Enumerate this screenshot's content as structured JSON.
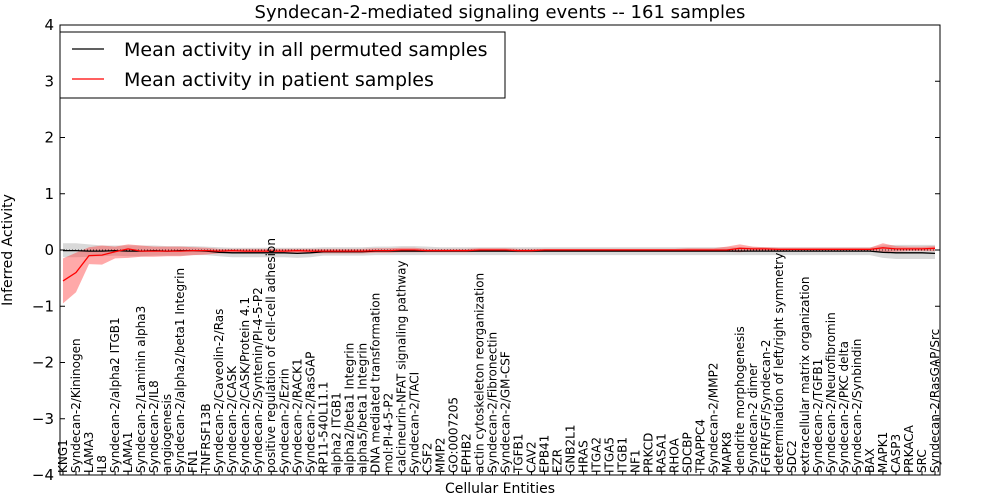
{
  "chart_data": {
    "type": "line",
    "title": "Syndecan-2-mediated signaling events -- 161 samples",
    "xlabel": "Cellular Entities",
    "ylabel": "Inferred Activity",
    "ylim": [
      -4,
      4
    ],
    "yticks": [
      "−4",
      "−3",
      "−2",
      "−1",
      "0",
      "1",
      "2",
      "3",
      "4"
    ],
    "legend_position": "upper-left",
    "categories": [
      "KNG1",
      "Syndecan-2/Kininogen",
      "LAMA3",
      "IL8",
      "Syndecan-2/alpha2 ITGB1",
      "LAMA1",
      "Syndecan-2/Laminin alpha3",
      "Syndecan-2/IL8",
      "angiogenesis",
      "Syndecan-2/alpha2/beta1 Integrin",
      "FN1",
      "TNFRSF13B",
      "Syndecan-2/Caveolin-2/Ras",
      "Syndecan-2/CASK",
      "Syndecan-2/CASK/Protein 4.1",
      "Syndecan-2/Syntenin/PI-4-5-P2",
      "positive regulation of cell-cell adhesion",
      "Syndecan-2/Ezrin",
      "Syndecan-2/RACK1",
      "Syndecan-2/RasGAP",
      "RP11-540L11.1",
      "alpha2 ITGB1",
      "alpha2/beta1 Integrin",
      "alpha5/beta1 Integrin",
      "DNA mediated transformation",
      "mol:PI-4-5-P2",
      "calcineurin-NFAT signaling pathway",
      "Syndecan-2/TACI",
      "CSF2",
      "MMP2",
      "GO:0007205",
      "EPHB2",
      "actin cytoskeleton reorganization",
      "Syndecan-2/Fibronectin",
      "Syndecan-2/GM-CSF",
      "TGFB1",
      "CAV2",
      "EPB41",
      "EZR",
      "GNB2L1",
      "HRAS",
      "ITGA2",
      "ITGA5",
      "ITGB1",
      "NF1",
      "PRKCD",
      "RASA1",
      "RHOA",
      "SDCBP",
      "TRAPPC4",
      "Syndecan-2/MMP2",
      "MAPK8",
      "dendrite morphogenesis",
      "Syndecan-2 dimer",
      "FGFR/FGF/Syndecan-2",
      "determination of left/right symmetry",
      "SDC2",
      "extracellular matrix organization",
      "Syndecan-2/TGFB1",
      "Syndecan-2/Neurofibromin",
      "Syndecan-2/PKC delta",
      "Syndecan-2/Synbindin",
      "BAX",
      "MAPK1",
      "CASP3",
      "PRKACA",
      "SRC",
      "Syndecan-2/RasGAP/Src"
    ],
    "series": [
      {
        "name": "Mean activity in all permuted samples",
        "color": "#000000",
        "values": [
          -0.01,
          -0.01,
          -0.02,
          -0.02,
          -0.01,
          -0.02,
          -0.02,
          -0.01,
          -0.02,
          -0.01,
          -0.01,
          -0.02,
          -0.04,
          -0.05,
          -0.05,
          -0.05,
          -0.05,
          -0.05,
          -0.06,
          -0.05,
          -0.03,
          -0.03,
          -0.03,
          -0.03,
          -0.02,
          -0.02,
          -0.02,
          -0.02,
          -0.02,
          -0.02,
          -0.02,
          -0.02,
          -0.02,
          -0.02,
          -0.02,
          -0.02,
          -0.02,
          -0.02,
          -0.02,
          -0.02,
          -0.02,
          -0.02,
          -0.02,
          -0.02,
          -0.02,
          -0.02,
          -0.02,
          -0.02,
          -0.02,
          -0.02,
          -0.02,
          -0.02,
          -0.02,
          -0.02,
          -0.02,
          -0.02,
          -0.02,
          -0.02,
          -0.02,
          -0.02,
          -0.02,
          -0.02,
          -0.02,
          -0.04,
          -0.05,
          -0.05,
          -0.05,
          -0.06
        ],
        "band_upper": [
          0.12,
          0.12,
          0.1,
          0.08,
          0.08,
          0.08,
          0.08,
          0.08,
          0.07,
          0.07,
          0.07,
          0.06,
          0.05,
          0.04,
          0.04,
          0.04,
          0.04,
          0.04,
          0.04,
          0.04,
          0.05,
          0.05,
          0.05,
          0.05,
          0.06,
          0.06,
          0.07,
          0.07,
          0.06,
          0.05,
          0.05,
          0.05,
          0.05,
          0.05,
          0.05,
          0.05,
          0.05,
          0.05,
          0.05,
          0.05,
          0.05,
          0.05,
          0.05,
          0.05,
          0.05,
          0.05,
          0.05,
          0.05,
          0.05,
          0.05,
          0.05,
          0.05,
          0.05,
          0.05,
          0.05,
          0.05,
          0.05,
          0.05,
          0.05,
          0.05,
          0.05,
          0.05,
          0.05,
          0.08,
          0.09,
          0.09,
          0.09,
          0.09
        ],
        "band_lower": [
          -0.13,
          -0.13,
          -0.12,
          -0.11,
          -0.1,
          -0.11,
          -0.11,
          -0.1,
          -0.1,
          -0.1,
          -0.09,
          -0.09,
          -0.11,
          -0.13,
          -0.13,
          -0.13,
          -0.13,
          -0.13,
          -0.14,
          -0.13,
          -0.1,
          -0.1,
          -0.1,
          -0.1,
          -0.09,
          -0.09,
          -0.09,
          -0.09,
          -0.09,
          -0.09,
          -0.09,
          -0.09,
          -0.09,
          -0.09,
          -0.09,
          -0.09,
          -0.09,
          -0.09,
          -0.09,
          -0.09,
          -0.09,
          -0.09,
          -0.09,
          -0.09,
          -0.09,
          -0.09,
          -0.09,
          -0.09,
          -0.09,
          -0.09,
          -0.09,
          -0.09,
          -0.09,
          -0.09,
          -0.09,
          -0.09,
          -0.09,
          -0.09,
          -0.09,
          -0.09,
          -0.09,
          -0.09,
          -0.09,
          -0.14,
          -0.16,
          -0.16,
          -0.16,
          -0.16
        ]
      },
      {
        "name": "Mean activity in patient samples",
        "color": "#ff0000",
        "values": [
          -0.55,
          -0.4,
          -0.1,
          -0.09,
          -0.03,
          0.02,
          -0.02,
          -0.02,
          -0.02,
          -0.02,
          -0.01,
          -0.01,
          -0.02,
          -0.01,
          -0.02,
          -0.02,
          -0.02,
          -0.02,
          -0.01,
          -0.02,
          -0.02,
          -0.02,
          -0.02,
          -0.02,
          -0.01,
          -0.01,
          0.0,
          0.0,
          -0.01,
          -0.01,
          -0.01,
          -0.01,
          0.0,
          0.0,
          0.0,
          -0.01,
          -0.01,
          0.0,
          0.0,
          0.0,
          0.0,
          0.0,
          0.0,
          0.0,
          0.0,
          0.0,
          0.0,
          0.0,
          0.0,
          0.0,
          0.0,
          0.0,
          0.03,
          0.02,
          0.02,
          0.01,
          0.01,
          0.01,
          0.01,
          0.01,
          0.01,
          0.01,
          0.01,
          0.04,
          0.02,
          0.02,
          0.02,
          0.03
        ],
        "band_upper": [
          -0.15,
          -0.05,
          0.05,
          0.08,
          0.06,
          0.1,
          0.08,
          0.06,
          0.06,
          0.06,
          0.05,
          0.04,
          0.02,
          0.02,
          0.02,
          0.02,
          0.02,
          0.02,
          0.02,
          0.02,
          0.02,
          0.02,
          0.02,
          0.02,
          0.03,
          0.03,
          0.04,
          0.04,
          0.02,
          0.02,
          0.02,
          0.02,
          0.03,
          0.03,
          0.03,
          0.02,
          0.02,
          0.02,
          0.02,
          0.02,
          0.02,
          0.02,
          0.02,
          0.02,
          0.02,
          0.02,
          0.02,
          0.02,
          0.03,
          0.03,
          0.03,
          0.06,
          0.1,
          0.06,
          0.05,
          0.04,
          0.04,
          0.04,
          0.04,
          0.04,
          0.04,
          0.04,
          0.04,
          0.12,
          0.07,
          0.06,
          0.06,
          0.07
        ],
        "band_lower": [
          -0.95,
          -0.75,
          -0.25,
          -0.26,
          -0.15,
          -0.14,
          -0.12,
          -0.12,
          -0.11,
          -0.11,
          -0.09,
          -0.08,
          -0.06,
          -0.05,
          -0.06,
          -0.06,
          -0.06,
          -0.06,
          -0.05,
          -0.06,
          -0.06,
          -0.06,
          -0.06,
          -0.06,
          -0.05,
          -0.05,
          -0.04,
          -0.04,
          -0.04,
          -0.04,
          -0.04,
          -0.04,
          -0.03,
          -0.03,
          -0.03,
          -0.04,
          -0.04,
          -0.03,
          -0.03,
          -0.03,
          -0.03,
          -0.03,
          -0.03,
          -0.03,
          -0.03,
          -0.03,
          -0.03,
          -0.03,
          -0.03,
          -0.03,
          -0.03,
          -0.03,
          -0.04,
          -0.02,
          -0.02,
          -0.02,
          -0.02,
          -0.02,
          -0.02,
          -0.02,
          -0.02,
          -0.02,
          -0.02,
          -0.04,
          -0.03,
          -0.02,
          -0.02,
          -0.02
        ]
      }
    ]
  }
}
